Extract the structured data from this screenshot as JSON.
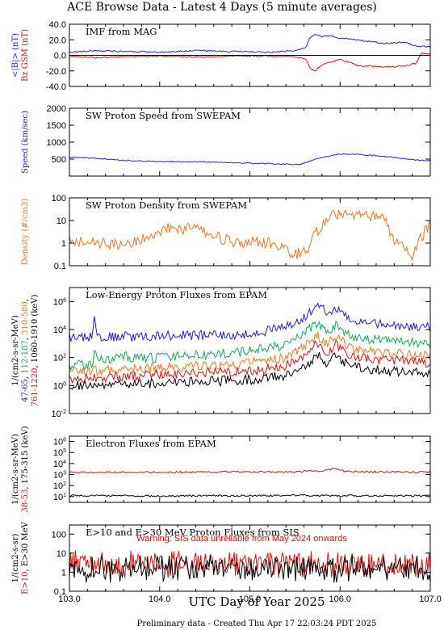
{
  "page": {
    "title": "ACE Browse Data - Latest 4 Days (5 minute averages)",
    "footer": "Preliminary data - Created Thu Apr 17 22:03:24 PDT 2025",
    "xaxis_label": "UTC Day of Year 2025"
  },
  "colors": {
    "blue": "#1f1fd6",
    "red": "#dd1111",
    "orange": "#ee7722",
    "green": "#11aa55",
    "black": "#000000"
  },
  "chart_data": [
    {
      "type": "line",
      "title": "IMF from MAG",
      "ylabels": [
        {
          "text": "<|B|> (nT)",
          "color": "blue"
        },
        {
          "text": "Bz GSM (nT)",
          "color": "red"
        }
      ],
      "yscale": "linear",
      "ylim": [
        -40,
        40
      ],
      "yticks": [
        "40.0",
        "20.0",
        "0.0",
        "-20.0",
        "-40.0"
      ],
      "xlim": [
        103.0,
        107.0
      ],
      "series": [
        {
          "color": "blue",
          "x": [
            103.0,
            103.3,
            103.6,
            104.0,
            104.4,
            104.8,
            105.2,
            105.5,
            105.62,
            105.66,
            105.72,
            105.8,
            105.9,
            106.0,
            106.2,
            106.5,
            106.7,
            106.85,
            107.0
          ],
          "y": [
            4,
            6,
            5,
            4,
            6,
            5,
            4,
            6,
            9,
            22,
            27,
            24,
            25,
            22,
            20,
            15,
            17,
            12,
            11
          ]
        },
        {
          "color": "red",
          "x": [
            103.0,
            103.3,
            103.6,
            104.0,
            104.4,
            104.8,
            105.2,
            105.5,
            105.62,
            105.66,
            105.72,
            105.8,
            105.9,
            106.0,
            106.1,
            106.2,
            106.5,
            106.7,
            106.85,
            106.9,
            107.0
          ],
          "y": [
            -1,
            -3,
            -2,
            -1,
            -2,
            -1,
            -1,
            -2,
            -5,
            -15,
            -20,
            -12,
            -9,
            -5,
            -9,
            -13,
            -15,
            -14,
            -10,
            3,
            2
          ]
        }
      ]
    },
    {
      "type": "line",
      "title": "SW Proton Speed from SWEPAM",
      "ylabels": [
        {
          "text": "Speed (km/sec)",
          "color": "blue"
        }
      ],
      "yscale": "linear",
      "ylim": [
        0,
        2000
      ],
      "yticks": [
        "2000",
        "1500",
        "1000",
        "500"
      ],
      "xlim": [
        103.0,
        107.0
      ],
      "series": [
        {
          "color": "blue",
          "x": [
            103.0,
            103.3,
            103.6,
            104.0,
            104.5,
            105.0,
            105.3,
            105.55,
            105.65,
            105.75,
            105.9,
            106.0,
            106.2,
            106.5,
            106.8,
            107.0
          ],
          "y": [
            560,
            520,
            460,
            430,
            420,
            380,
            360,
            340,
            420,
            520,
            600,
            650,
            640,
            580,
            480,
            460
          ]
        }
      ]
    },
    {
      "type": "line",
      "title": "SW Proton Density from SWEPAM",
      "ylabels": [
        {
          "text": "Density (#/cm3)",
          "color": "orange"
        }
      ],
      "yscale": "log",
      "ylim": [
        0.1,
        100
      ],
      "yticks": [
        "100",
        "10",
        "1",
        "0.1"
      ],
      "xlim": [
        103.0,
        107.0
      ],
      "series": [
        {
          "color": "orange",
          "x": [
            103.0,
            103.3,
            103.6,
            103.9,
            104.1,
            104.4,
            104.7,
            104.9,
            105.1,
            105.3,
            105.5,
            105.65,
            105.72,
            105.85,
            105.95,
            106.1,
            106.3,
            106.5,
            106.62,
            106.8,
            106.95,
            107.0
          ],
          "y": [
            1.5,
            1.0,
            0.8,
            2.0,
            5.0,
            4.0,
            1.5,
            0.9,
            1.2,
            0.8,
            0.3,
            0.5,
            2.5,
            12,
            20,
            15,
            18,
            10,
            1.0,
            0.3,
            4,
            6
          ]
        }
      ]
    },
    {
      "type": "line",
      "title": "Low-Energy Proton Fluxes from EPAM",
      "ylabels": [
        {
          "text": "1/(cm2-s-sr-MeV)",
          "color": "black"
        },
        {
          "text": "47-65, 112-187, 310-580,",
          "color": "mixed"
        },
        {
          "text": "761-1220, 1060-1910 (keV)",
          "color": "mixed"
        }
      ],
      "yscale": "log",
      "ylim": [
        0.01,
        10000000
      ],
      "yticks": [
        "10^6",
        "10^4",
        "10^2",
        "10^0",
        "10^-2"
      ],
      "xlim": [
        103.0,
        107.0
      ],
      "series": [
        {
          "name": "47-65",
          "color": "blue",
          "x": [
            103.0,
            103.25,
            103.28,
            103.31,
            103.4,
            103.6,
            103.62,
            103.65,
            104.0,
            104.5,
            105.0,
            105.4,
            105.6,
            105.7,
            105.75,
            105.85,
            105.95,
            106.1,
            106.3,
            106.6,
            106.9,
            107.0
          ],
          "y": [
            3000,
            3000,
            150000,
            3000,
            3000,
            3000,
            20000,
            3000,
            3500,
            4000,
            5000,
            15000,
            80000,
            300000,
            800000,
            200000,
            300000,
            60000,
            30000,
            20000,
            15000,
            15000
          ]
        },
        {
          "name": "112-187",
          "color": "green",
          "x": [
            103.0,
            103.25,
            103.28,
            103.31,
            103.5,
            103.62,
            103.65,
            104.0,
            104.5,
            105.0,
            105.4,
            105.6,
            105.75,
            105.85,
            105.95,
            106.1,
            106.3,
            106.6,
            106.9,
            107.0
          ],
          "y": [
            30,
            30,
            300,
            60,
            70,
            200,
            80,
            100,
            150,
            300,
            800,
            5000,
            30000,
            5000,
            20000,
            4000,
            2000,
            1500,
            1200,
            1000
          ]
        },
        {
          "name": "310-580",
          "color": "orange",
          "x": [
            103.0,
            103.5,
            104.0,
            104.5,
            105.0,
            105.4,
            105.6,
            105.75,
            105.85,
            105.95,
            106.1,
            106.3,
            106.6,
            106.9,
            107.0
          ],
          "y": [
            10,
            12,
            20,
            25,
            40,
            100,
            600,
            4000,
            800,
            3000,
            600,
            300,
            200,
            150,
            150
          ]
        },
        {
          "name": "761-1220",
          "color": "red",
          "x": [
            103.0,
            103.5,
            104.0,
            104.5,
            105.0,
            105.4,
            105.6,
            105.75,
            105.85,
            105.95,
            106.1,
            106.3,
            106.6,
            106.9,
            107.0
          ],
          "y": [
            3,
            4,
            6,
            8,
            10,
            25,
            150,
            1000,
            200,
            800,
            150,
            80,
            60,
            50,
            40
          ]
        },
        {
          "name": "1060-1910",
          "color": "black",
          "x": [
            103.0,
            103.5,
            104.0,
            104.5,
            105.0,
            105.4,
            105.6,
            105.75,
            105.85,
            105.95,
            106.1,
            106.3,
            106.6,
            106.9,
            107.0
          ],
          "y": [
            1,
            1.2,
            1.5,
            2,
            2.5,
            5,
            20,
            150,
            40,
            120,
            30,
            15,
            10,
            8,
            6
          ]
        }
      ]
    },
    {
      "type": "line",
      "title": "Electron Fluxes from EPAM",
      "ylabels": [
        {
          "text": "1/(cm2-s-sr-MeV)",
          "color": "black"
        },
        {
          "text": "38-53, 175-315 (keV)",
          "color": "mixed"
        }
      ],
      "yscale": "log",
      "ylim": [
        3,
        3000000
      ],
      "yticks": [
        "10^6",
        "10^5",
        "10^4",
        "10^3",
        "10^2",
        "10^1"
      ],
      "xlim": [
        103.0,
        107.0
      ],
      "series": [
        {
          "name": "38-53",
          "color": "red",
          "x": [
            103.0,
            103.5,
            104.0,
            104.5,
            105.0,
            105.5,
            105.8,
            105.95,
            106.05,
            106.3,
            106.6,
            107.0
          ],
          "y": [
            1500,
            1600,
            1600,
            1700,
            1800,
            1800,
            2200,
            3500,
            2000,
            1800,
            1700,
            1600
          ]
        },
        {
          "name": "175-315",
          "color": "black",
          "x": [
            103.0,
            103.5,
            104.0,
            104.5,
            105.0,
            105.5,
            106.0,
            106.5,
            107.0
          ],
          "y": [
            12,
            12,
            11,
            12,
            12,
            13,
            12,
            12,
            12
          ]
        }
      ]
    },
    {
      "type": "line",
      "title": "E>10 and E>30 MeV Proton Fluxes from SIS",
      "ylabels": [
        {
          "text": "1/(cm2-s-sr)",
          "color": "black"
        },
        {
          "text": "E>10, E>30 MeV",
          "color": "mixed"
        }
      ],
      "annotation": "Warning: SIS data unreliable from May 2024 onwards",
      "yscale": "log",
      "ylim": [
        0.1,
        300
      ],
      "yticks": [
        "100",
        "10",
        "1",
        "0.1"
      ],
      "xlim": [
        103.0,
        107.0
      ],
      "xticks": [
        "103.0",
        "104.0",
        "105.0",
        "106.0",
        "107.0"
      ],
      "series": [
        {
          "name": "E>10",
          "color": "red",
          "x": [
            103.0,
            107.0
          ],
          "y": [
            3.5,
            3.5
          ]
        },
        {
          "name": "E>30",
          "color": "black",
          "x": [
            103.0,
            107.0
          ],
          "y": [
            2.0,
            2.0
          ]
        }
      ]
    }
  ]
}
